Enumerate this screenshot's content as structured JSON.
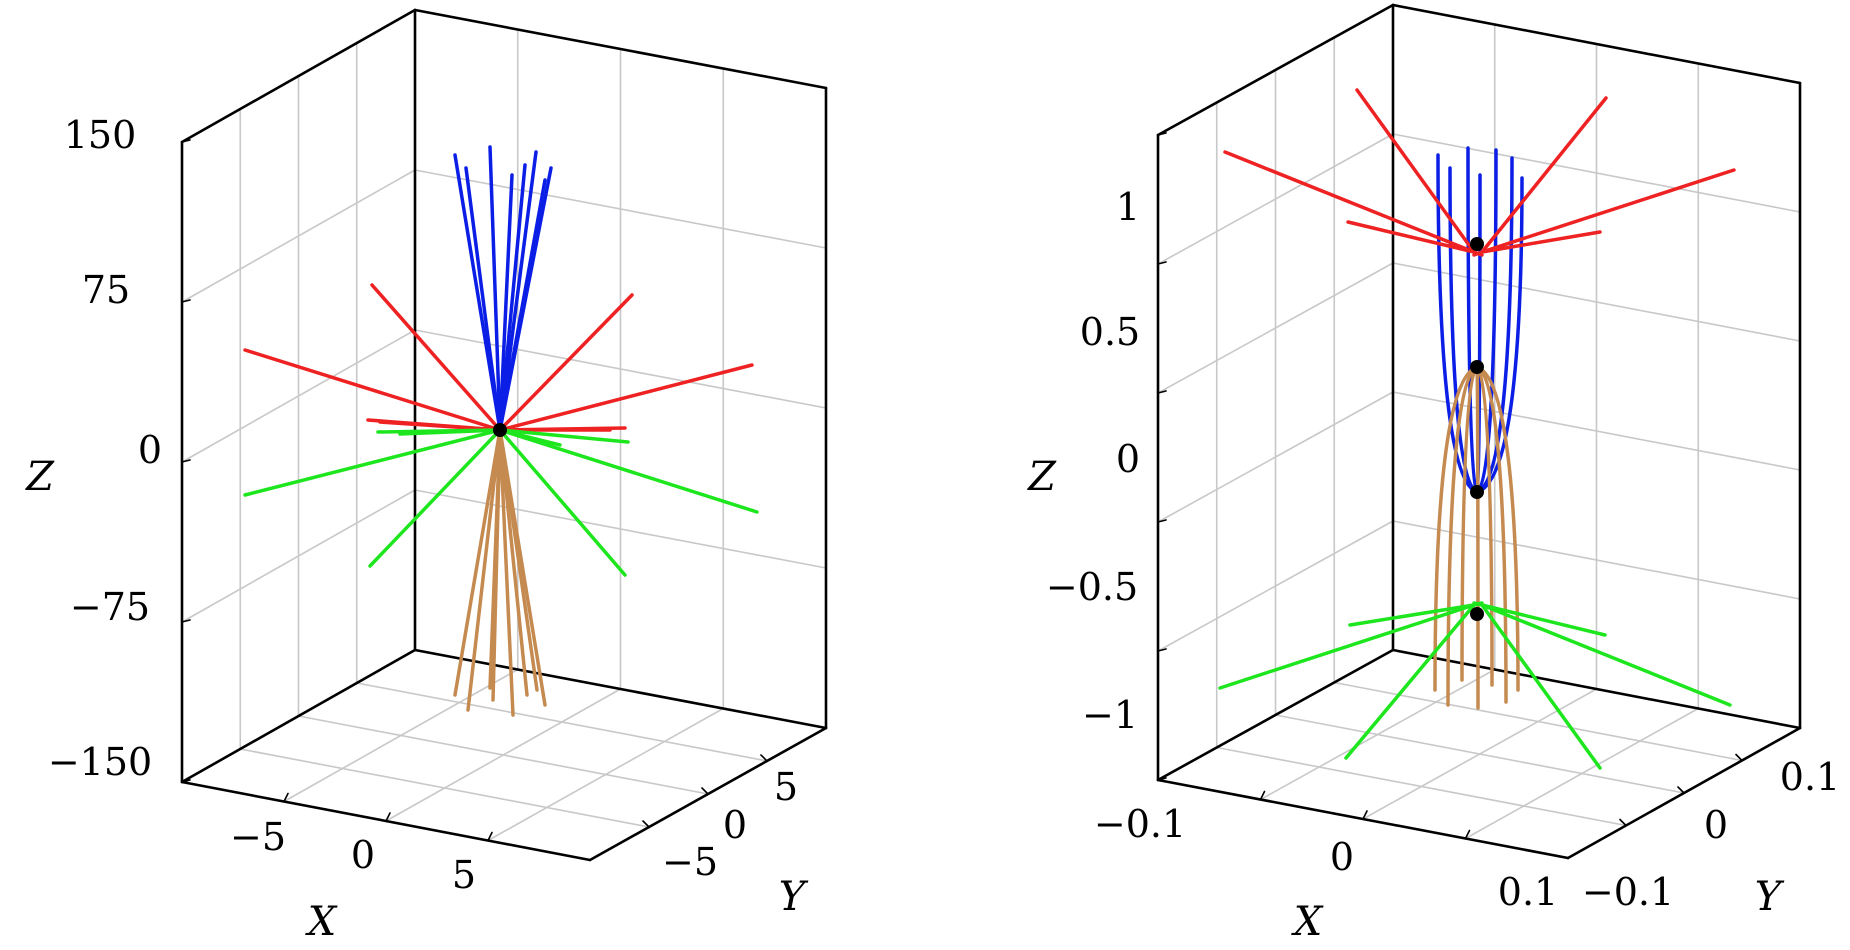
{
  "colors": {
    "grid": "#c8c8c8",
    "box": "#000000",
    "blue": "#0a1ee6",
    "red": "#ee2222",
    "green": "#1ee61e",
    "tan": "#c48a50",
    "point": "#000000"
  },
  "chart_data": [
    {
      "type": "line3d",
      "description": "Left panel",
      "xlabel": "X",
      "ylabel": "Y",
      "zlabel": "Z",
      "xticks": [
        "−5",
        "0",
        "5"
      ],
      "yticks": [
        "−5",
        "0",
        "5"
      ],
      "zticks": [
        "150",
        "75",
        "0",
        "−75",
        "−150"
      ],
      "xlim": [
        -10,
        10
      ],
      "ylim": [
        -10,
        10
      ],
      "zlim": [
        -150,
        150
      ],
      "grid": true,
      "center_point": [
        0,
        0,
        15
      ],
      "series": [
        {
          "color": "blue",
          "line_count": 8,
          "z_range": [
            15,
            145
          ],
          "direction": "up"
        },
        {
          "color": "red",
          "line_count": 8,
          "z_range": [
            15,
            90
          ],
          "direction": "outward-up"
        },
        {
          "color": "green",
          "line_count": 8,
          "z_range": [
            -60,
            15
          ],
          "direction": "outward-down"
        },
        {
          "color": "tan",
          "line_count": 8,
          "z_range": [
            -120,
            15
          ],
          "direction": "down"
        }
      ]
    },
    {
      "type": "line3d",
      "description": "Right panel",
      "xlabel": "X",
      "ylabel": "Y",
      "zlabel": "Z",
      "xticks": [
        "−0.1",
        "0",
        "0.1"
      ],
      "yticks": [
        "−0.1",
        "0",
        "0.1"
      ],
      "zticks": [
        "1",
        "0.5",
        "0",
        "−0.5",
        "−1"
      ],
      "xlim": [
        -0.15,
        0.15
      ],
      "ylim": [
        -0.15,
        0.15
      ],
      "zlim": [
        -1.25,
        1.25
      ],
      "grid": true,
      "points": [
        [
          0,
          0,
          0.85
        ],
        [
          0,
          0,
          0.35
        ],
        [
          0,
          0,
          -0.15
        ],
        [
          0,
          0,
          -0.65
        ]
      ],
      "series": [
        {
          "color": "red",
          "line_count": 8,
          "z_range": [
            0.85,
            1.2
          ],
          "direction": "outward-up"
        },
        {
          "color": "blue",
          "line_count": 8,
          "z_range": [
            -0.15,
            1.15
          ],
          "direction": "up"
        },
        {
          "color": "tan",
          "line_count": 8,
          "z_range": [
            -1.0,
            0.35
          ],
          "direction": "down"
        },
        {
          "color": "green",
          "line_count": 8,
          "z_range": [
            -1.1,
            -0.65
          ],
          "direction": "outward-down"
        }
      ]
    }
  ]
}
